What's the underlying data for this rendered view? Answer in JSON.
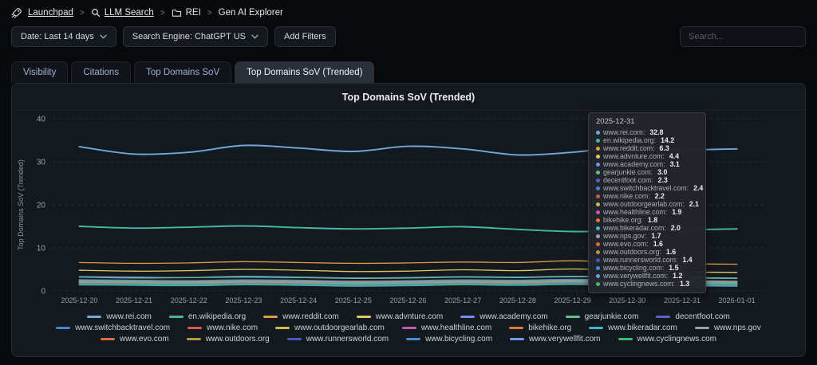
{
  "breadcrumb": {
    "separator": ">",
    "items": [
      {
        "label": "Launchpad"
      },
      {
        "label": "LLM Search"
      },
      {
        "label": "REI"
      },
      {
        "label": "Gen AI Explorer"
      }
    ]
  },
  "filters": {
    "date_label": "Date: Last 14 days",
    "engine_label": "Search Engine: ChatGPT US",
    "add_filters_label": "Add Filters",
    "search_placeholder": "Search..."
  },
  "tabs": [
    {
      "label": "Visibility",
      "active": false
    },
    {
      "label": "Citations",
      "active": false
    },
    {
      "label": "Top Domains SoV",
      "active": false
    },
    {
      "label": "Top Domains SoV (Trended)",
      "active": true
    }
  ],
  "chart_data": {
    "type": "line",
    "title": "Top Domains SoV (Trended)",
    "ylabel": "Top Domains SoV (Trended)",
    "ylim": [
      0,
      40
    ],
    "yticks": [
      0,
      10,
      20,
      30,
      40
    ],
    "grid": "dashed-horizontal",
    "legend_position": "bottom",
    "x": [
      "2025-12-20",
      "2025-12-21",
      "2025-12-22",
      "2025-12-23",
      "2025-12-24",
      "2025-12-25",
      "2025-12-26",
      "2025-12-27",
      "2025-12-28",
      "2025-12-29",
      "2025-12-30",
      "2025-12-31",
      "2026-01-01"
    ],
    "series": [
      {
        "name": "www.rei.com",
        "color": "#6fa8dc",
        "values": [
          33.5,
          31.8,
          32.2,
          33.8,
          33.2,
          32.4,
          33.6,
          33.0,
          31.6,
          32.2,
          33.4,
          32.8,
          33.0
        ]
      },
      {
        "name": "en.wikipedia.org",
        "color": "#45b8a1",
        "values": [
          15.0,
          14.6,
          14.8,
          15.1,
          14.7,
          14.4,
          14.6,
          14.9,
          14.3,
          13.8,
          14.0,
          14.2,
          14.4
        ]
      },
      {
        "name": "www.reddit.com",
        "color": "#de9a43",
        "values": [
          6.6,
          6.4,
          6.5,
          6.8,
          6.6,
          6.4,
          6.5,
          6.7,
          6.6,
          7.0,
          6.6,
          6.3,
          6.2
        ]
      },
      {
        "name": "www.advnture.com",
        "color": "#dfc95f",
        "values": [
          4.8,
          4.6,
          4.7,
          5.0,
          4.8,
          4.5,
          4.6,
          4.9,
          4.7,
          5.1,
          4.7,
          4.4,
          4.3
        ]
      },
      {
        "name": "www.academy.com",
        "color": "#7b8cf0",
        "values": [
          3.3,
          3.2,
          3.1,
          3.4,
          3.2,
          3.0,
          3.1,
          3.3,
          3.2,
          3.4,
          3.2,
          3.1,
          3.0
        ]
      },
      {
        "name": "gearjunkie.com",
        "color": "#5fc08a",
        "values": [
          3.2,
          3.0,
          3.1,
          3.2,
          3.1,
          2.9,
          3.0,
          3.2,
          3.1,
          3.3,
          3.1,
          3.0,
          2.9
        ]
      },
      {
        "name": "decentfoot.com",
        "color": "#5a63c8",
        "values": [
          2.5,
          2.4,
          2.3,
          2.5,
          2.4,
          2.2,
          2.3,
          2.5,
          2.4,
          2.6,
          2.4,
          2.3,
          2.2
        ]
      },
      {
        "name": "www.switchbacktravel.com",
        "color": "#4a82d6",
        "values": [
          2.6,
          2.5,
          2.4,
          2.6,
          2.5,
          2.3,
          2.4,
          2.6,
          2.5,
          2.7,
          2.5,
          2.4,
          2.3
        ]
      },
      {
        "name": "www.nike.com",
        "color": "#d65a4a",
        "values": [
          2.4,
          2.3,
          2.2,
          2.4,
          2.3,
          2.1,
          2.2,
          2.4,
          2.3,
          2.5,
          2.3,
          2.2,
          2.1
        ]
      },
      {
        "name": "www.outdoorgearlab.com",
        "color": "#c9c050",
        "values": [
          2.3,
          2.2,
          2.1,
          2.3,
          2.2,
          2.0,
          2.1,
          2.3,
          2.2,
          2.4,
          2.2,
          2.1,
          2.0
        ]
      },
      {
        "name": "www.healthline.com",
        "color": "#c45ab4",
        "values": [
          2.1,
          2.0,
          1.9,
          2.1,
          2.0,
          1.8,
          1.9,
          2.1,
          2.0,
          2.2,
          2.0,
          1.9,
          1.8
        ]
      },
      {
        "name": "bikehike.org",
        "color": "#e07a38",
        "values": [
          2.0,
          1.9,
          1.8,
          2.0,
          1.9,
          1.7,
          1.8,
          2.0,
          1.9,
          2.1,
          1.9,
          1.8,
          1.7
        ]
      },
      {
        "name": "www.bikeradar.com",
        "color": "#3fb6c9",
        "values": [
          2.2,
          2.1,
          2.0,
          2.2,
          2.1,
          1.9,
          2.0,
          2.2,
          2.1,
          2.3,
          2.1,
          2.0,
          1.9
        ]
      },
      {
        "name": "www.nps.gov",
        "color": "#9aa4ae",
        "values": [
          1.9,
          1.8,
          1.7,
          1.9,
          1.8,
          1.6,
          1.7,
          1.9,
          1.8,
          2.0,
          1.8,
          1.7,
          1.6
        ]
      },
      {
        "name": "www.evo.com",
        "color": "#e06a48",
        "values": [
          1.8,
          1.7,
          1.6,
          1.8,
          1.7,
          1.5,
          1.6,
          1.8,
          1.7,
          1.9,
          1.7,
          1.6,
          1.5
        ]
      },
      {
        "name": "www.outdoors.org",
        "color": "#b39a3e",
        "values": [
          1.8,
          1.7,
          1.6,
          1.7,
          1.6,
          1.5,
          1.6,
          1.8,
          1.7,
          1.8,
          1.7,
          1.6,
          1.5
        ]
      },
      {
        "name": "www.runnersworld.com",
        "color": "#4a55c0",
        "values": [
          1.6,
          1.5,
          1.4,
          1.6,
          1.5,
          1.3,
          1.4,
          1.6,
          1.5,
          1.7,
          1.5,
          1.4,
          1.3
        ]
      },
      {
        "name": "www.bicycling.com",
        "color": "#3f8fd9",
        "values": [
          1.7,
          1.6,
          1.5,
          1.7,
          1.6,
          1.4,
          1.5,
          1.7,
          1.6,
          1.8,
          1.6,
          1.5,
          1.4
        ]
      },
      {
        "name": "www.verywellfit.com",
        "color": "#6f9be8",
        "values": [
          1.4,
          1.3,
          1.2,
          1.4,
          1.3,
          1.1,
          1.2,
          1.4,
          1.3,
          1.5,
          1.3,
          1.2,
          1.1
        ]
      },
      {
        "name": "www.cyclingnews.com",
        "color": "#3cba6e",
        "values": [
          1.5,
          1.4,
          1.3,
          1.5,
          1.4,
          1.2,
          1.3,
          1.5,
          1.4,
          1.6,
          1.4,
          1.3,
          1.2
        ]
      }
    ],
    "legend_rows": [
      7,
      7,
      6
    ],
    "tooltip": {
      "title": "2025-12-31",
      "index": 11,
      "entries": [
        {
          "name": "www.rei.com",
          "value": "32.8"
        },
        {
          "name": "en.wikipedia.org",
          "value": "14.2"
        },
        {
          "name": "www.reddit.com",
          "value": "6.3"
        },
        {
          "name": "www.advnture.com",
          "value": "4.4"
        },
        {
          "name": "www.academy.com",
          "value": "3.1"
        },
        {
          "name": "gearjunkie.com",
          "value": "3.0"
        },
        {
          "name": "decentfoot.com",
          "value": "2.3"
        },
        {
          "name": "www.switchbacktravel.com",
          "value": "2.4"
        },
        {
          "name": "www.nike.com",
          "value": "2.2"
        },
        {
          "name": "www.outdoorgearlab.com",
          "value": "2.1"
        },
        {
          "name": "www.healthline.com",
          "value": "1.9"
        },
        {
          "name": "bikehike.org",
          "value": "1.8"
        },
        {
          "name": "www.bikeradar.com",
          "value": "2.0"
        },
        {
          "name": "www.nps.gov",
          "value": "1.7"
        },
        {
          "name": "www.evo.com",
          "value": "1.6"
        },
        {
          "name": "www.outdoors.org",
          "value": "1.6"
        },
        {
          "name": "www.runnersworld.com",
          "value": "1.4"
        },
        {
          "name": "www.bicycling.com",
          "value": "1.5"
        },
        {
          "name": "www.verywellfit.com",
          "value": "1.2"
        },
        {
          "name": "www.cyclingnews.com",
          "value": "1.3"
        }
      ]
    }
  }
}
